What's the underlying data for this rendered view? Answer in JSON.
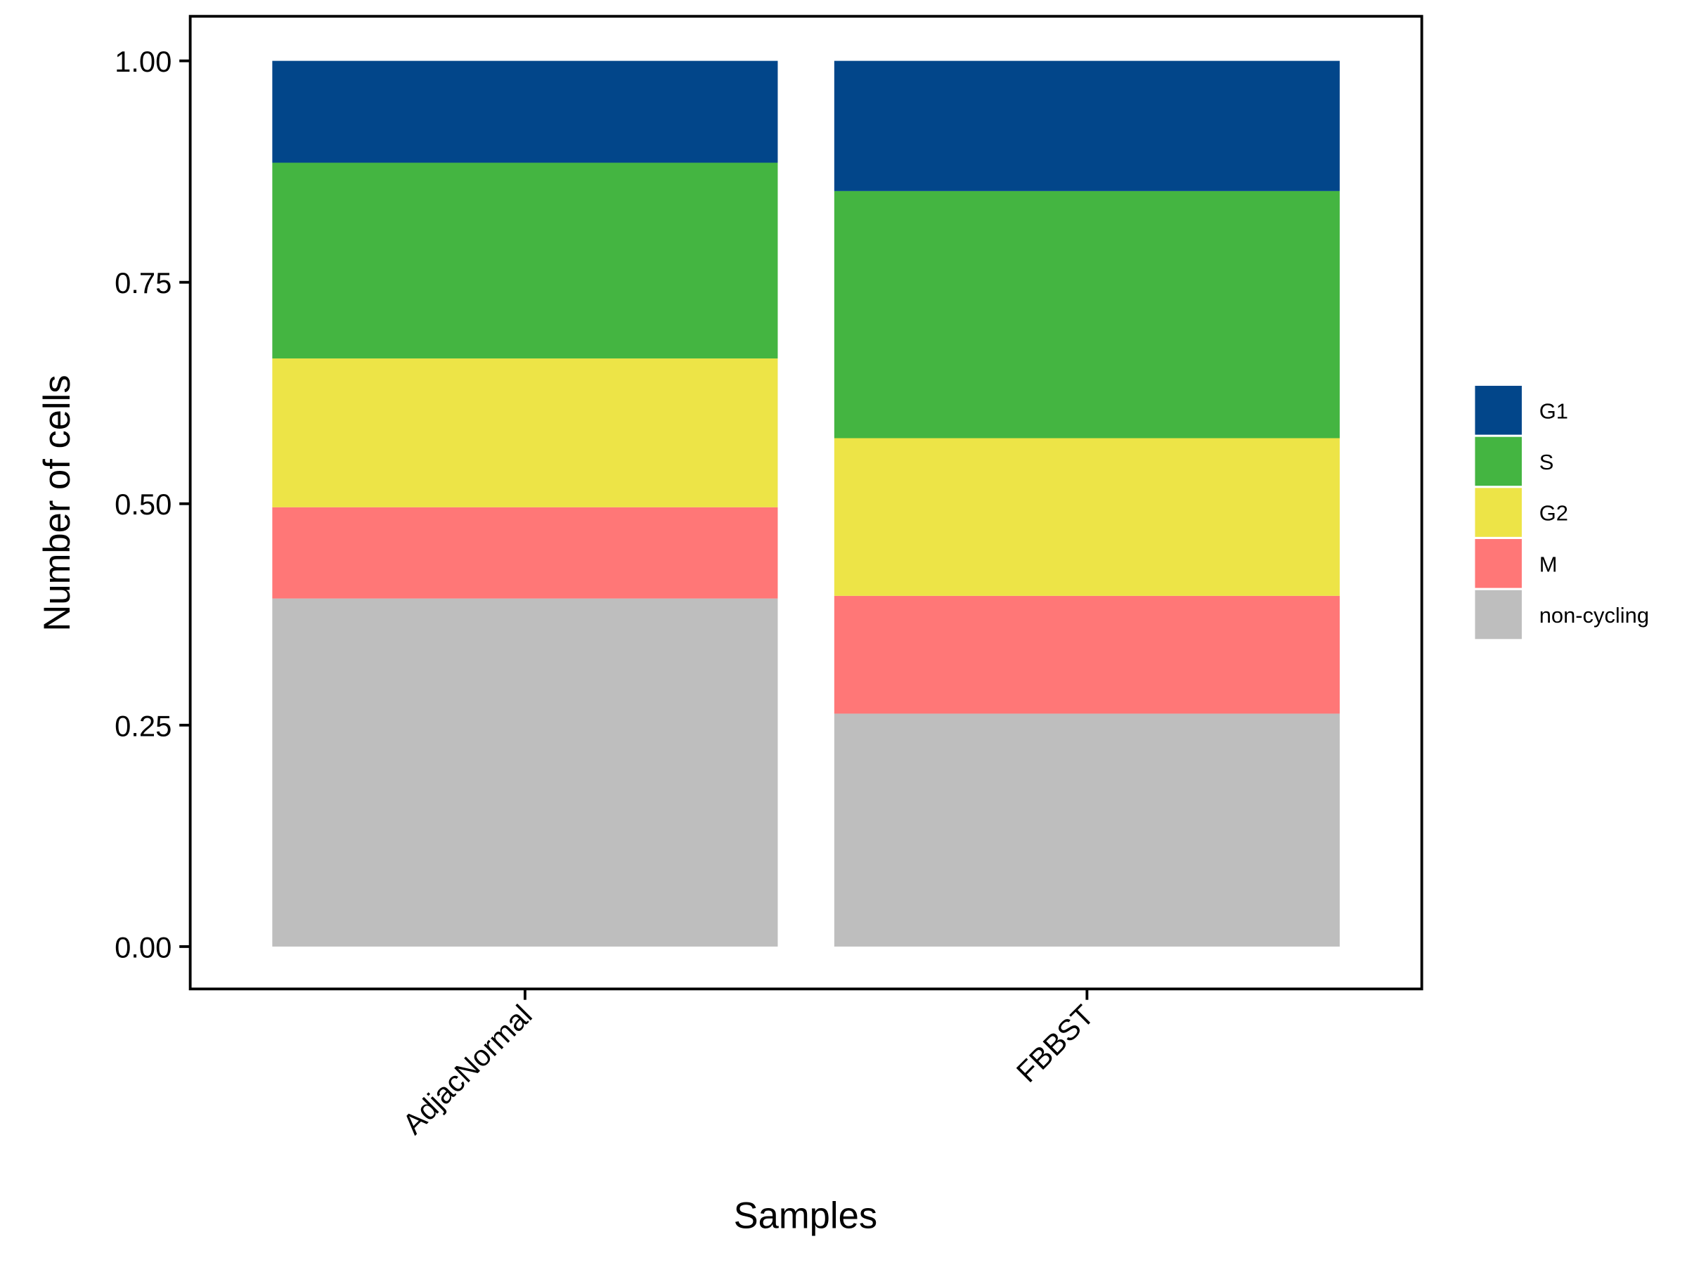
{
  "chart_data": {
    "type": "bar",
    "stacked": true,
    "title": "",
    "xlabel": "Samples",
    "ylabel": "Number of cells",
    "ylim": [
      0,
      1
    ],
    "yticks": [
      "0.00",
      "0.25",
      "0.50",
      "0.75",
      "1.00"
    ],
    "categories": [
      "AdjacNormal",
      "FBBST"
    ],
    "series": [
      {
        "name": "non-cycling",
        "color": "#BEBEBE",
        "values": [
          0.393,
          0.263
        ]
      },
      {
        "name": "M",
        "color": "#FF7777",
        "values": [
          0.103,
          0.133
        ]
      },
      {
        "name": "G2",
        "color": "#EDE447",
        "values": [
          0.168,
          0.178
        ]
      },
      {
        "name": "S",
        "color": "#44B541",
        "values": [
          0.221,
          0.279
        ]
      },
      {
        "name": "G1",
        "color": "#02468A",
        "values": [
          0.115,
          0.147
        ]
      }
    ],
    "legend_order": [
      "G1",
      "S",
      "G2",
      "M",
      "non-cycling"
    ],
    "legend_position": "right",
    "grid": false
  }
}
